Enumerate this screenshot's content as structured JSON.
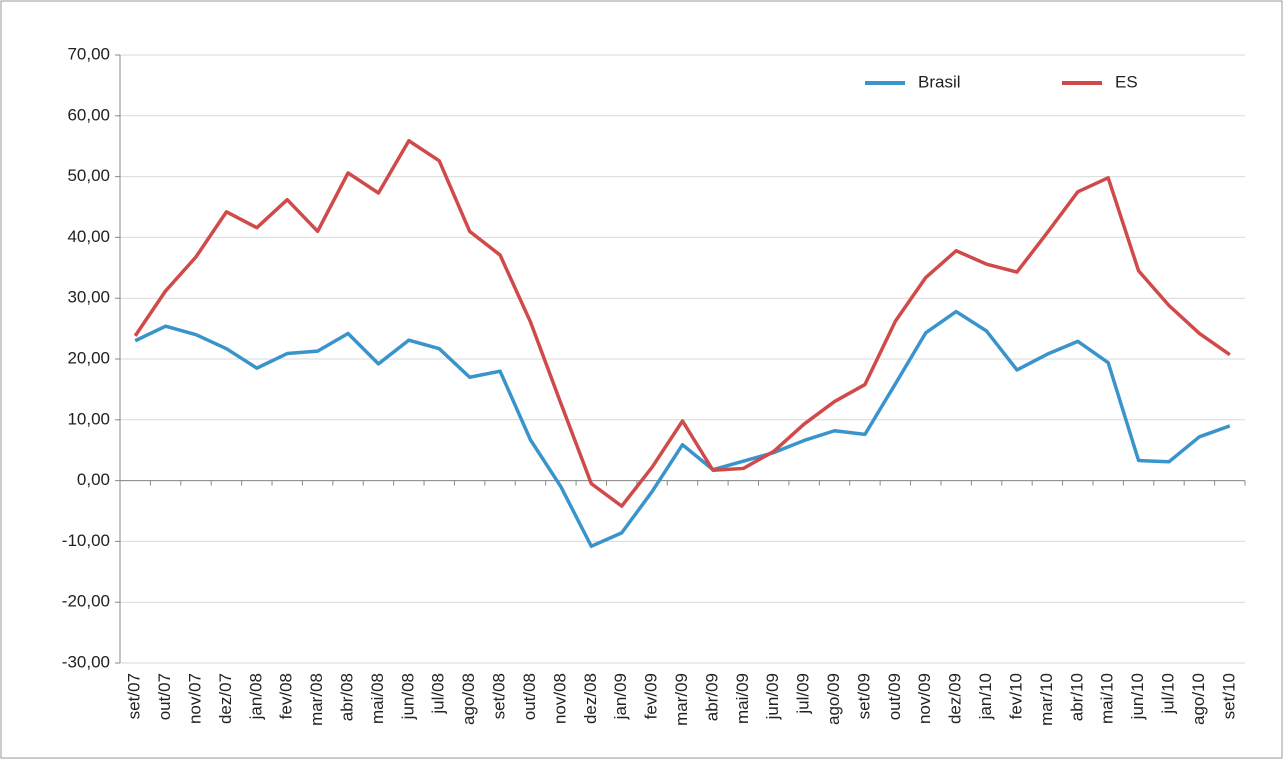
{
  "chart_data": {
    "type": "line",
    "categories": [
      "set/07",
      "out/07",
      "nov/07",
      "dez/07",
      "jan/08",
      "fev/08",
      "mar/08",
      "abr/08",
      "mai/08",
      "jun/08",
      "jul/08",
      "ago/08",
      "set/08",
      "out/08",
      "nov/08",
      "dez/08",
      "jan/09",
      "fev/09",
      "mar/09",
      "abr/09",
      "mai/09",
      "jun/09",
      "jul/09",
      "ago/09",
      "set/09",
      "out/09",
      "nov/09",
      "dez/09",
      "jan/10",
      "fev/10",
      "mar/10",
      "abr/10",
      "mai/10",
      "jun/10",
      "jul/10",
      "ago/10",
      "set/10"
    ],
    "series": [
      {
        "name": "Brasil",
        "color": "#3a94cc",
        "values": [
          23.0,
          25.4,
          24.0,
          21.7,
          18.5,
          20.9,
          21.3,
          24.2,
          19.2,
          23.1,
          21.7,
          17.0,
          18.0,
          6.7,
          -1.0,
          -10.8,
          -8.6,
          -1.8,
          5.9,
          1.8,
          3.2,
          4.6,
          6.6,
          8.2,
          7.6,
          15.9,
          24.3,
          27.8,
          24.6,
          18.2,
          20.8,
          22.9,
          19.4,
          3.3,
          3.1,
          7.2,
          9.0
        ]
      },
      {
        "name": "ES",
        "color": "#d04a4a",
        "values": [
          23.8,
          31.2,
          36.8,
          44.2,
          41.6,
          46.2,
          41.0,
          50.6,
          47.3,
          55.9,
          52.6,
          41.0,
          37.1,
          26.1,
          12.7,
          -0.5,
          -4.2,
          2.2,
          9.8,
          1.7,
          2.0,
          4.8,
          9.3,
          13.0,
          15.8,
          26.2,
          33.4,
          37.8,
          35.6,
          34.3,
          40.8,
          47.5,
          49.8,
          34.5,
          28.8,
          24.2,
          20.7
        ]
      }
    ],
    "ylim": [
      -30,
      70
    ],
    "yticks": [
      {
        "value": -30,
        "label": "-30,00"
      },
      {
        "value": -20,
        "label": "-20,00"
      },
      {
        "value": -10,
        "label": "-10,00"
      },
      {
        "value": 0,
        "label": "0,00"
      },
      {
        "value": 10,
        "label": "10,00"
      },
      {
        "value": 20,
        "label": "20,00"
      },
      {
        "value": 30,
        "label": "30,00"
      },
      {
        "value": 40,
        "label": "40,00"
      },
      {
        "value": 50,
        "label": "50,00"
      },
      {
        "value": 60,
        "label": "60,00"
      },
      {
        "value": 70,
        "label": "70,00"
      }
    ],
    "grid": true,
    "legend": "upper right"
  }
}
